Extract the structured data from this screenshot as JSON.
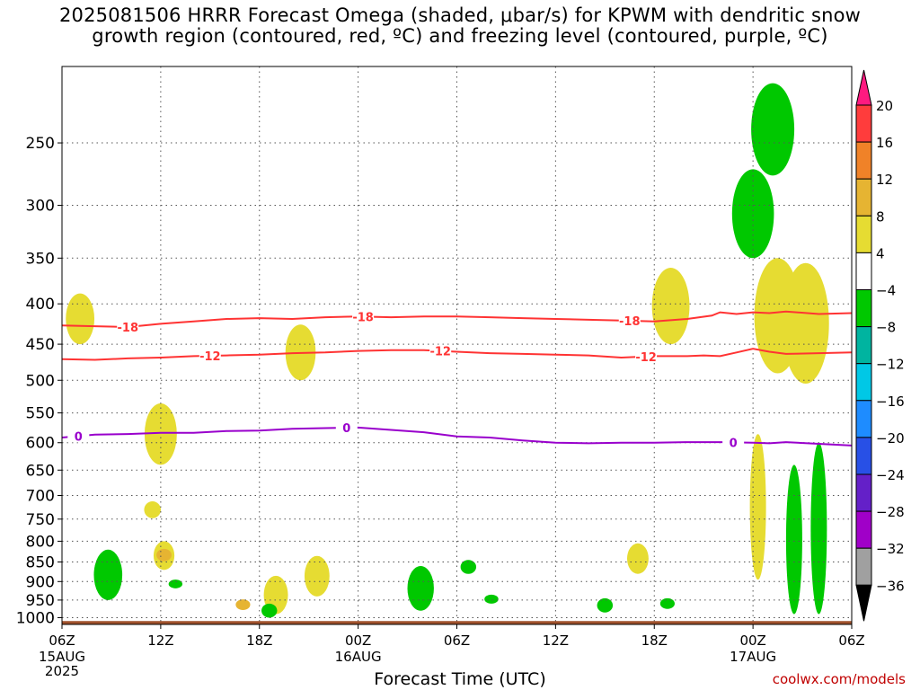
{
  "title": "2025081506 HRRR Forecast Omega (shaded, μbar/s) for KPWM with dendritic snow\ngrowth region (contoured, red, ºC) and freezing level (contoured, purple, ºC)",
  "credit": "coolwx.com/models",
  "chart_data": {
    "type": "time-height cross-section",
    "xlabel": "Forecast Time (UTC)",
    "ylabel": "",
    "x_ticks": [
      "06Z",
      "12Z",
      "18Z",
      "00Z",
      "06Z",
      "12Z",
      "18Z",
      "00Z",
      "06Z"
    ],
    "x_tick_hours": [
      0,
      6,
      12,
      18,
      24,
      30,
      36,
      42,
      48
    ],
    "date_labels": [
      {
        "hour": 0,
        "lines": [
          "15AUG",
          "2025"
        ]
      },
      {
        "hour": 18,
        "lines": [
          "16AUG"
        ]
      },
      {
        "hour": 42,
        "lines": [
          "17AUG"
        ]
      }
    ],
    "y_ticks": [
      250,
      300,
      350,
      400,
      450,
      500,
      550,
      600,
      650,
      700,
      750,
      800,
      850,
      900,
      950,
      1000
    ],
    "y_range_hpa": [
      200,
      1020
    ],
    "x_range_hours": [
      0,
      48
    ],
    "grid": true,
    "contours": [
      {
        "level": "-18",
        "color": "#ff3333",
        "label_hours": [
          4,
          18.3,
          34.5
        ],
        "points": [
          [
            0,
            426
          ],
          [
            2,
            427
          ],
          [
            4,
            428
          ],
          [
            6,
            424
          ],
          [
            8,
            421
          ],
          [
            10,
            418
          ],
          [
            12,
            417
          ],
          [
            14,
            418
          ],
          [
            16,
            416
          ],
          [
            18,
            415
          ],
          [
            20,
            416
          ],
          [
            22,
            415
          ],
          [
            24,
            415
          ],
          [
            26,
            416
          ],
          [
            28,
            417
          ],
          [
            30,
            418
          ],
          [
            32,
            419
          ],
          [
            34,
            420
          ],
          [
            36,
            421
          ],
          [
            38,
            418
          ],
          [
            39.5,
            414
          ],
          [
            40,
            410
          ],
          [
            41,
            412
          ],
          [
            42,
            410
          ],
          [
            43,
            411
          ],
          [
            44,
            409
          ],
          [
            46,
            412
          ],
          [
            48,
            411
          ]
        ]
      },
      {
        "level": "-12",
        "color": "#ff3333",
        "label_hours": [
          9,
          23,
          35.5
        ],
        "points": [
          [
            0,
            470
          ],
          [
            2,
            471
          ],
          [
            4,
            469
          ],
          [
            6,
            468
          ],
          [
            8,
            466
          ],
          [
            10,
            465
          ],
          [
            12,
            464
          ],
          [
            14,
            462
          ],
          [
            16,
            461
          ],
          [
            18,
            459
          ],
          [
            20,
            458
          ],
          [
            22,
            458
          ],
          [
            24,
            460
          ],
          [
            26,
            462
          ],
          [
            28,
            463
          ],
          [
            30,
            464
          ],
          [
            32,
            465
          ],
          [
            34,
            468
          ],
          [
            36,
            466
          ],
          [
            38,
            466
          ],
          [
            39,
            465
          ],
          [
            40,
            466
          ],
          [
            41,
            461
          ],
          [
            42,
            456
          ],
          [
            43,
            460
          ],
          [
            44,
            463
          ],
          [
            46,
            462
          ],
          [
            48,
            461
          ]
        ]
      },
      {
        "level": "0",
        "color": "#9900cc",
        "label_hours": [
          1,
          17.3,
          40.8
        ],
        "points": [
          [
            0,
            591
          ],
          [
            2,
            586
          ],
          [
            4,
            585
          ],
          [
            6,
            583
          ],
          [
            8,
            583
          ],
          [
            10,
            580
          ],
          [
            12,
            579
          ],
          [
            14,
            576
          ],
          [
            16,
            575
          ],
          [
            18,
            574
          ],
          [
            20,
            578
          ],
          [
            22,
            582
          ],
          [
            24,
            589
          ],
          [
            26,
            591
          ],
          [
            28,
            596
          ],
          [
            30,
            600
          ],
          [
            32,
            601
          ],
          [
            34,
            600
          ],
          [
            36,
            600
          ],
          [
            38,
            599
          ],
          [
            40,
            599
          ],
          [
            42,
            600
          ],
          [
            43,
            601
          ],
          [
            44,
            599
          ],
          [
            46,
            602
          ],
          [
            48,
            605
          ]
        ]
      }
    ],
    "shaded_regions": [
      {
        "color": "#e6dc32",
        "omega_range": [
          4,
          8
        ],
        "hours_center": 1.1,
        "hpa": [
          388,
          450
        ]
      },
      {
        "color": "#e6dc32",
        "omega_range": [
          4,
          8
        ],
        "hours_center": 6.0,
        "hpa": [
          535,
          640
        ]
      },
      {
        "color": "#e6dc32",
        "omega_range": [
          4,
          8
        ],
        "hours_center": 5.5,
        "hpa": [
          712,
          748
        ]
      },
      {
        "color": "#e6dc32",
        "omega_range": [
          4,
          8
        ],
        "hours_center": 6.2,
        "hpa": [
          800,
          870
        ]
      },
      {
        "color": "#e6b432",
        "omega_range": [
          8,
          12
        ],
        "hours_center": 6.2,
        "hpa": [
          818,
          848
        ]
      },
      {
        "color": "#e6dc32",
        "omega_range": [
          4,
          8
        ],
        "hours_center": 13.0,
        "hpa": [
          885,
          990
        ]
      },
      {
        "color": "#e6b432",
        "omega_range": [
          8,
          12
        ],
        "hours_center": 11.0,
        "hpa": [
          948,
          978
        ]
      },
      {
        "color": "#e6dc32",
        "omega_range": [
          4,
          8
        ],
        "hours_center": 15.5,
        "hpa": [
          835,
          940
        ]
      },
      {
        "color": "#e6dc32",
        "omega_range": [
          4,
          8
        ],
        "hours_center": 14.5,
        "hpa": [
          425,
          500
        ]
      },
      {
        "color": "#e6dc32",
        "omega_range": [
          4,
          8
        ],
        "hours_center": 37.0,
        "hpa": [
          360,
          450
        ]
      },
      {
        "color": "#e6dc32",
        "omega_range": [
          4,
          8
        ],
        "hours_center": 35.0,
        "hpa": [
          805,
          880
        ]
      },
      {
        "color": "#e6dc32",
        "omega_range": [
          4,
          8
        ],
        "hours_center": 42.3,
        "hpa": [
          585,
          895
        ]
      },
      {
        "color": "#e6dc32",
        "omega_range": [
          4,
          8
        ],
        "hours_center": 43.5,
        "hpa": [
          350,
          490
        ]
      },
      {
        "color": "#e6dc32",
        "omega_range": [
          4,
          8
        ],
        "hours_center": 45.2,
        "hpa": [
          355,
          505
        ]
      },
      {
        "color": "#00c800",
        "omega_range": [
          -8,
          -4
        ],
        "hours_center": 2.8,
        "hpa": [
          820,
          950
        ]
      },
      {
        "color": "#00c800",
        "omega_range": [
          -8,
          -4
        ],
        "hours_center": 6.9,
        "hpa": [
          895,
          918
        ]
      },
      {
        "color": "#00c800",
        "omega_range": [
          -8,
          -4
        ],
        "hours_center": 12.6,
        "hpa": [
          960,
          1000
        ]
      },
      {
        "color": "#00c800",
        "omega_range": [
          -8,
          -4
        ],
        "hours_center": 21.8,
        "hpa": [
          860,
          980
        ]
      },
      {
        "color": "#00c800",
        "omega_range": [
          -8,
          -4
        ],
        "hours_center": 24.7,
        "hpa": [
          845,
          880
        ]
      },
      {
        "color": "#00c800",
        "omega_range": [
          -8,
          -4
        ],
        "hours_center": 26.1,
        "hpa": [
          935,
          960
        ]
      },
      {
        "color": "#00c800",
        "omega_range": [
          -8,
          -4
        ],
        "hours_center": 33.0,
        "hpa": [
          945,
          985
        ]
      },
      {
        "color": "#00c800",
        "omega_range": [
          -8,
          -4
        ],
        "hours_center": 36.8,
        "hpa": [
          945,
          975
        ]
      },
      {
        "color": "#00c800",
        "omega_range": [
          -8,
          -4
        ],
        "hours_center": 43.2,
        "hpa": [
          210,
          275
        ]
      },
      {
        "color": "#00c800",
        "omega_range": [
          -8,
          -4
        ],
        "hours_center": 42.0,
        "hpa": [
          270,
          350
        ]
      },
      {
        "color": "#00c800",
        "omega_range": [
          -8,
          -4
        ],
        "hours_center": 44.5,
        "hpa": [
          640,
          990
        ]
      },
      {
        "color": "#00c800",
        "omega_range": [
          -8,
          -4
        ],
        "hours_center": 46.0,
        "hpa": [
          600,
          990
        ]
      }
    ],
    "terrain": {
      "color": "#a0522d",
      "hpa_top": 1010
    }
  },
  "colorbar": {
    "labels": [
      "20",
      "16",
      "12",
      "8",
      "4",
      "−4",
      "−8",
      "−12",
      "−16",
      "−20",
      "−24",
      "−28",
      "−32",
      "−36"
    ],
    "colors": [
      "#ff1a80",
      "#ff3c3c",
      "#f08228",
      "#e6b432",
      "#e6dc32",
      "#ffffff",
      "#00c800",
      "#00b4a0",
      "#00c8e6",
      "#1e8cff",
      "#2850e6",
      "#6420c8",
      "#a000c8",
      "#a0a0a0",
      "#000000"
    ]
  }
}
